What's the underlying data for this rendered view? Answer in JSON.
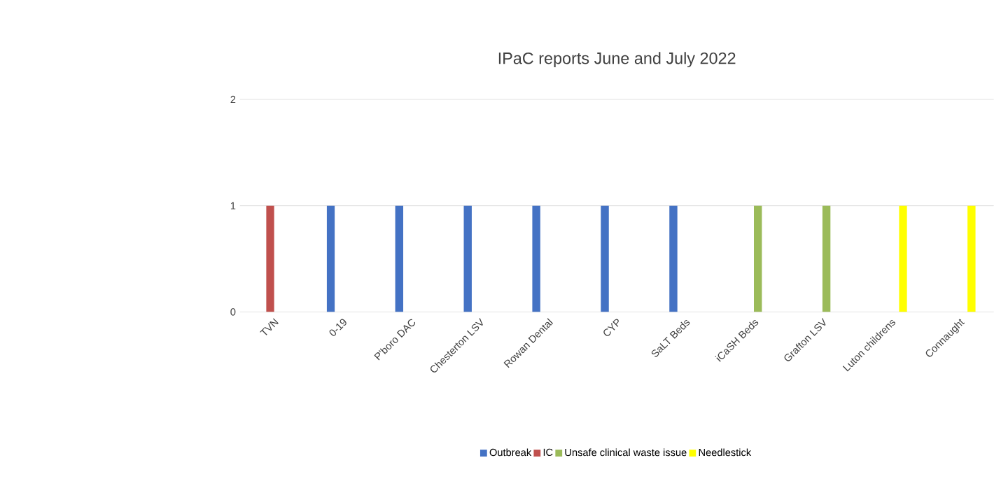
{
  "chart_data": {
    "type": "bar",
    "title": "IPaC reports June and July 2022",
    "categories": [
      "TVN",
      "0-19",
      "P'boro DAC",
      "Chesterton LSV",
      "Rowan Dental",
      "CYP",
      "SaLT Beds",
      "iCaSH Beds",
      "Grafton LSV",
      "Luton childrens",
      "Connaught"
    ],
    "series": [
      {
        "name": "Outbreak",
        "color": "#4472c4",
        "values": [
          null,
          1,
          1,
          1,
          1,
          1,
          1,
          null,
          null,
          null,
          null
        ]
      },
      {
        "name": "IC",
        "color": "#c0504d",
        "values": [
          1,
          null,
          null,
          null,
          null,
          null,
          null,
          null,
          null,
          null,
          null
        ]
      },
      {
        "name": "Unsafe clinical waste issue",
        "color": "#9bbb59",
        "values": [
          null,
          null,
          null,
          null,
          null,
          null,
          null,
          1,
          1,
          null,
          null
        ]
      },
      {
        "name": "Needlestick",
        "color": "#ffff00",
        "values": [
          null,
          null,
          null,
          null,
          null,
          null,
          null,
          null,
          null,
          1,
          1
        ]
      }
    ],
    "ylim": [
      0,
      2
    ],
    "yticks": [
      0,
      1,
      2
    ],
    "grid": "y",
    "legend": "bottom"
  }
}
